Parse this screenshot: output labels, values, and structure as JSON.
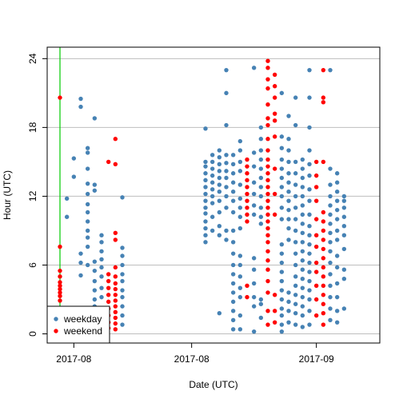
{
  "chart_data": {
    "type": "scatter",
    "title": "",
    "xlabel": "Date (UTC)",
    "ylabel": "Hour (UTC)",
    "ylim": [
      -0.8,
      25
    ],
    "y_ticks": [
      0,
      6,
      12,
      18,
      24
    ],
    "x_tick_labels": [
      "2017-08",
      "2017-08",
      "2017-09"
    ],
    "x_range_dates": [
      "2017-07-27",
      "2017-09-10"
    ],
    "x_tick_dates": [
      "2017-07-29",
      "2017-08-15",
      "2017-09-02"
    ],
    "vertical_marker_date": "2017-07-27",
    "grid": "horizontal",
    "legend": {
      "position": "bottom-left",
      "entries": [
        "weekday",
        "weekend"
      ]
    },
    "colors": {
      "weekday": "#4682B4",
      "weekend": "#FF0000",
      "marker_line": "#00CC00",
      "grid": "#BEBEBE"
    },
    "series": [
      {
        "name": "weekday",
        "columns": [
          {
            "date": "2017-07-28",
            "hours": [
              2.1,
              10.2,
              11.8
            ]
          },
          {
            "date": "2017-07-29",
            "hours": [
              2.0,
              13.7,
              15.3
            ]
          },
          {
            "date": "2017-07-30",
            "hours": [
              1.8,
              5.1,
              6.2,
              7.0,
              19.8,
              20.5
            ]
          },
          {
            "date": "2017-07-31",
            "hours": [
              1.9,
              6.0,
              7.6,
              8.4,
              9.0,
              9.8,
              10.6,
              11.3,
              12.2,
              13.1,
              14.4,
              15.8,
              16.2
            ]
          },
          {
            "date": "2017-08-01",
            "hours": [
              1.2,
              2.4,
              3.0,
              3.8,
              4.6,
              5.5,
              6.3,
              12.5,
              13.0,
              18.8
            ]
          },
          {
            "date": "2017-08-02",
            "hours": [
              2.0,
              3.2,
              4.0,
              5.0,
              5.8,
              6.5,
              7.2,
              8.0,
              8.6
            ]
          },
          {
            "date": "2017-08-05",
            "hours": [
              0.8,
              1.6,
              2.4,
              3.2,
              3.8,
              4.6,
              5.2,
              6.0,
              6.8,
              7.5,
              11.9
            ]
          },
          {
            "date": "2017-08-17",
            "hours": [
              8.0,
              8.6,
              9.2,
              9.8,
              10.5,
              11.0,
              11.6,
              12.2,
              12.8,
              13.4,
              14.0,
              14.6,
              15.0,
              17.9
            ]
          },
          {
            "date": "2017-08-18",
            "hours": [
              9.0,
              10.2,
              11.4,
              12.0,
              12.6,
              13.2,
              13.8,
              14.4,
              15.0,
              15.6
            ]
          },
          {
            "date": "2017-08-19",
            "hours": [
              1.8,
              8.6,
              9.4,
              10.6,
              11.6,
              12.4,
              13.0,
              13.6,
              14.2,
              14.8,
              15.4,
              16.0
            ]
          },
          {
            "date": "2017-08-20",
            "hours": [
              8.2,
              9.0,
              11.0,
              12.0,
              12.8,
              13.6,
              14.2,
              14.9,
              15.6,
              18.2,
              21.0,
              23.0
            ]
          },
          {
            "date": "2017-08-21",
            "hours": [
              0.4,
              1.2,
              2.0,
              2.8,
              3.6,
              4.4,
              5.2,
              6.0,
              7.0,
              8.0,
              9.0,
              10.6,
              11.6,
              12.4,
              13.2,
              14.0,
              14.8,
              15.6
            ]
          },
          {
            "date": "2017-08-22",
            "hours": [
              0.4,
              1.6,
              3.2,
              4.0,
              5.0,
              6.0,
              6.8,
              9.2,
              10.2,
              11.0,
              11.8,
              13.0,
              14.2,
              15.0,
              16.0,
              16.8
            ]
          },
          {
            "date": "2017-08-24",
            "hours": [
              0.2,
              2.4,
              3.2,
              4.4,
              5.6,
              6.6,
              10.4,
              11.2,
              12.2,
              13.2,
              14.6,
              15.8,
              23.2
            ]
          },
          {
            "date": "2017-08-25",
            "hours": [
              1.4,
              2.6,
              3.0,
              9.6,
              10.2,
              11.0,
              12.0,
              12.8,
              13.6,
              14.4,
              15.2,
              16.0,
              17.0,
              18.0
            ]
          },
          {
            "date": "2017-08-28",
            "hours": [
              0.2,
              0.8,
              1.6,
              2.2,
              3.0,
              3.8,
              4.6,
              5.4,
              6.2,
              7.0,
              7.8,
              10.0,
              11.0,
              12.0,
              12.8,
              13.6,
              14.4,
              15.2,
              16.2,
              17.2,
              21.0
            ]
          },
          {
            "date": "2017-08-29",
            "hours": [
              1.0,
              2.0,
              2.8,
              3.6,
              8.2,
              9.2,
              10.0,
              10.8,
              11.6,
              12.4,
              13.2,
              14.0,
              15.0,
              16.0,
              17.0,
              19.0
            ]
          },
          {
            "date": "2017-08-30",
            "hours": [
              0.8,
              1.8,
              2.6,
              3.4,
              4.2,
              5.0,
              6.0,
              7.0,
              8.0,
              9.0,
              10.0,
              11.0,
              12.0,
              13.0,
              14.0,
              15.0,
              18.2,
              20.6
            ]
          },
          {
            "date": "2017-08-31",
            "hours": [
              0.6,
              1.6,
              2.4,
              3.2,
              4.0,
              4.8,
              5.6,
              6.4,
              7.2,
              8.0,
              8.8,
              9.6,
              10.4,
              11.2,
              12.0,
              12.8,
              13.6,
              14.4,
              15.2
            ]
          },
          {
            "date": "2017-09-01",
            "hours": [
              0.8,
              2.0,
              3.0,
              3.8,
              4.6,
              5.4,
              6.2,
              7.0,
              7.8,
              8.6,
              9.4,
              10.4,
              11.6,
              12.6,
              13.8,
              14.8,
              16.0,
              18.0,
              20.6,
              23.0
            ]
          },
          {
            "date": "2017-09-04",
            "hours": [
              1.2,
              2.2,
              3.2,
              4.2,
              5.2,
              6.2,
              7.2,
              8.0,
              8.8,
              9.6,
              10.4,
              11.2,
              12.0,
              13.0,
              14.4,
              23.0
            ]
          },
          {
            "date": "2017-09-05",
            "hours": [
              1.0,
              2.0,
              3.2,
              4.4,
              5.8,
              6.8,
              8.2,
              9.0,
              10.0,
              10.8,
              11.6,
              12.4,
              13.2,
              14.0
            ]
          },
          {
            "date": "2017-09-06",
            "hours": [
              2.2,
              4.8,
              5.6,
              7.4,
              8.6,
              9.4,
              10.2,
              11.0,
              11.6,
              12.0
            ]
          }
        ]
      },
      {
        "name": "weekend",
        "columns": [
          {
            "date": "2017-07-27",
            "hours": [
              2.9,
              3.3,
              3.6,
              3.9,
              4.2,
              4.5,
              5.0,
              5.5,
              7.6,
              20.6
            ]
          },
          {
            "date": "2017-08-03",
            "hours": [
              0.5,
              1.0,
              1.6,
              2.2,
              2.8,
              3.4,
              4.0,
              4.6,
              5.2,
              15.0
            ]
          },
          {
            "date": "2017-08-04",
            "hours": [
              0.4,
              0.9,
              1.4,
              1.9,
              2.4,
              2.9,
              3.4,
              3.9,
              4.4,
              5.0,
              5.8,
              8.2,
              8.8,
              14.8,
              17.0
            ]
          },
          {
            "date": "2017-08-23",
            "hours": [
              9.8,
              10.4,
              11.0,
              11.6,
              12.2,
              12.8,
              13.4,
              14.0,
              14.6,
              15.2,
              4.2,
              3.2
            ]
          },
          {
            "date": "2017-08-26",
            "hours": [
              0.8,
              2.0,
              3.6,
              4.6,
              5.6,
              6.4,
              7.2,
              8.0,
              8.6,
              9.2,
              9.8,
              10.4,
              11.0,
              11.6,
              12.2,
              12.8,
              13.4,
              14.0,
              14.6,
              15.2,
              16.0,
              17.0,
              18.2,
              18.8,
              20.0,
              21.4,
              22.2,
              23.2,
              23.8
            ]
          },
          {
            "date": "2017-08-27",
            "hours": [
              1.0,
              2.0,
              3.4,
              10.4,
              12.2,
              14.4,
              17.2,
              18.6,
              19.2,
              20.6,
              21.6,
              22.6
            ]
          },
          {
            "date": "2017-09-02",
            "hours": [
              1.6,
              3.0,
              4.2,
              5.4,
              6.2,
              7.6,
              8.6,
              10.0,
              11.6,
              12.8,
              13.8,
              15.0
            ]
          },
          {
            "date": "2017-09-03",
            "hours": [
              0.8,
              1.8,
              2.6,
              3.4,
              4.2,
              5.0,
              5.8,
              6.6,
              7.4,
              8.2,
              9.0,
              9.8,
              10.6,
              15.0,
              20.2,
              20.6,
              23.0
            ]
          }
        ]
      }
    ]
  }
}
